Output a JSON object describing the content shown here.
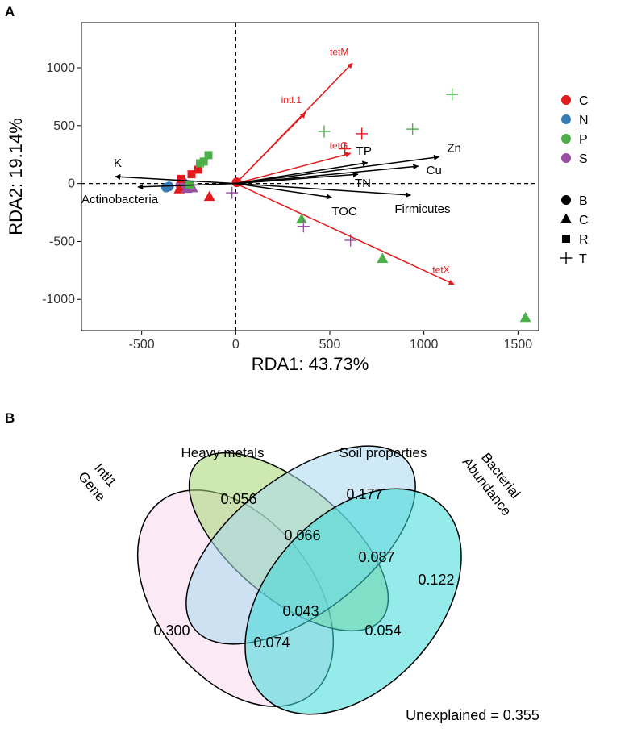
{
  "panel_a": {
    "label": "A"
  },
  "panel_b": {
    "label": "B"
  },
  "chart_data": [
    {
      "type": "scatter",
      "title": "",
      "xlabel": "RDA1: 43.73%",
      "ylabel": "RDA2: 19.14%",
      "xlim": [
        -820,
        1610
      ],
      "ylim": [
        -1270,
        1390
      ],
      "x_ticks": [
        -500,
        0,
        500,
        1000,
        1500
      ],
      "x_tick_labels": [
        "-500",
        "0",
        "500",
        "1000",
        "1500"
      ],
      "y_ticks": [
        -1000,
        -500,
        0,
        500,
        1000
      ],
      "y_tick_labels": [
        "-1000",
        "-500",
        "0",
        "500",
        "1000"
      ],
      "reference_lines": {
        "x": 0,
        "y": 0,
        "style": "dashed"
      },
      "color_legend": {
        "entries": [
          {
            "label": "C",
            "color": "#e41a1c"
          },
          {
            "label": "N",
            "color": "#377eb8"
          },
          {
            "label": "P",
            "color": "#4daf4a"
          },
          {
            "label": "S",
            "color": "#984ea3"
          }
        ]
      },
      "shape_legend": {
        "entries": [
          {
            "label": "B",
            "shape": "circle"
          },
          {
            "label": "C",
            "shape": "triangle"
          },
          {
            "label": "R",
            "shape": "square"
          },
          {
            "label": "T",
            "shape": "plus"
          }
        ]
      },
      "points": [
        {
          "x": -370,
          "y": -35,
          "group": "N",
          "shape": "circle"
        },
        {
          "x": -355,
          "y": -25,
          "group": "N",
          "shape": "circle"
        },
        {
          "x": -295,
          "y": -15,
          "group": "S",
          "shape": "circle"
        },
        {
          "x": -280,
          "y": 10,
          "group": "S",
          "shape": "circle"
        },
        {
          "x": -265,
          "y": -20,
          "group": "S",
          "shape": "circle"
        },
        {
          "x": -300,
          "y": -50,
          "group": "C",
          "shape": "triangle"
        },
        {
          "x": -260,
          "y": -45,
          "group": "S",
          "shape": "triangle"
        },
        {
          "x": -230,
          "y": -40,
          "group": "S",
          "shape": "triangle"
        },
        {
          "x": -140,
          "y": -115,
          "group": "C",
          "shape": "triangle"
        },
        {
          "x": 350,
          "y": -310,
          "group": "P",
          "shape": "triangle"
        },
        {
          "x": 780,
          "y": -650,
          "group": "P",
          "shape": "triangle"
        },
        {
          "x": 1540,
          "y": -1160,
          "group": "P",
          "shape": "triangle"
        },
        {
          "x": -290,
          "y": 40,
          "group": "C",
          "shape": "square"
        },
        {
          "x": -235,
          "y": 80,
          "group": "C",
          "shape": "square"
        },
        {
          "x": -200,
          "y": 120,
          "group": "C",
          "shape": "square"
        },
        {
          "x": -190,
          "y": 175,
          "group": "P",
          "shape": "square"
        },
        {
          "x": -170,
          "y": 190,
          "group": "P",
          "shape": "square"
        },
        {
          "x": -145,
          "y": 245,
          "group": "P",
          "shape": "square"
        },
        {
          "x": -245,
          "y": -10,
          "group": "P",
          "shape": "square"
        },
        {
          "x": 470,
          "y": 450,
          "group": "P",
          "shape": "plus"
        },
        {
          "x": 940,
          "y": 470,
          "group": "P",
          "shape": "plus"
        },
        {
          "x": 1150,
          "y": 770,
          "group": "P",
          "shape": "plus"
        },
        {
          "x": 670,
          "y": 430,
          "group": "C",
          "shape": "plus"
        },
        {
          "x": 580,
          "y": 300,
          "group": "C",
          "shape": "plus"
        },
        {
          "x": 360,
          "y": -370,
          "group": "S",
          "shape": "plus"
        },
        {
          "x": 610,
          "y": -490,
          "group": "S",
          "shape": "plus"
        },
        {
          "x": -20,
          "y": -80,
          "group": "S",
          "shape": "plus"
        },
        {
          "x": 5,
          "y": 10,
          "group": "C",
          "shape": "circle"
        }
      ],
      "vectors": [
        {
          "label": "tetM",
          "x": 620,
          "y": 1040,
          "color": "#e41a1c",
          "category": "ARG"
        },
        {
          "label": "intl.1",
          "x": 370,
          "y": 610,
          "color": "#e41a1c",
          "category": "ARG"
        },
        {
          "label": "tetG",
          "x": 610,
          "y": 260,
          "color": "#e41a1c",
          "category": "ARG"
        },
        {
          "label": "tetX",
          "x": 1160,
          "y": -870,
          "color": "#e41a1c",
          "category": "ARG"
        },
        {
          "label": "K",
          "x": -640,
          "y": 60,
          "color": "#000000",
          "category": "variable"
        },
        {
          "label": "Actinobacteria",
          "x": -520,
          "y": -30,
          "color": "#000000",
          "category": "variable"
        },
        {
          "label": "TP",
          "x": 700,
          "y": 180,
          "color": "#000000",
          "category": "variable"
        },
        {
          "label": "Zn",
          "x": 1080,
          "y": 230,
          "color": "#000000",
          "category": "variable"
        },
        {
          "label": "Cu",
          "x": 970,
          "y": 150,
          "color": "#000000",
          "category": "variable"
        },
        {
          "label": "TN",
          "x": 650,
          "y": 80,
          "color": "#000000",
          "category": "variable"
        },
        {
          "label": "TOC",
          "x": 510,
          "y": -120,
          "color": "#000000",
          "category": "variable"
        },
        {
          "label": "Firmicutes",
          "x": 930,
          "y": -100,
          "color": "#000000",
          "category": "variable"
        }
      ]
    },
    {
      "type": "venn",
      "title": "",
      "sets": [
        {
          "name": "Intl1 Gene",
          "lines": [
            "Intl1",
            "Gene"
          ],
          "color": "#f7d9ee"
        },
        {
          "name": "Heavy metals",
          "lines": [
            "Heavy metals"
          ],
          "color": "#a6d672"
        },
        {
          "name": "Soil properties",
          "lines": [
            "Soil properties"
          ],
          "color": "#a7d8ef"
        },
        {
          "name": "Bacterial Abundance",
          "lines": [
            "Bacterial",
            "Abundance"
          ],
          "color": "#3ed9d9"
        }
      ],
      "regions": [
        {
          "sets": [
            "Intl1 Gene"
          ],
          "value": "0.300"
        },
        {
          "sets": [
            "Heavy metals"
          ],
          "value": "0.056"
        },
        {
          "sets": [
            "Soil properties"
          ],
          "value": "0.177"
        },
        {
          "sets": [
            "Bacterial Abundance"
          ],
          "value": "0.122"
        },
        {
          "sets": [
            "Heavy metals",
            "Soil properties"
          ],
          "value": "0.066"
        },
        {
          "sets": [
            "Soil properties",
            "Bacterial Abundance"
          ],
          "value": "0.087"
        },
        {
          "sets": [
            "Intl1 Gene",
            "Heavy metals",
            "Soil properties",
            "Bacterial Abundance"
          ],
          "value": "0.043"
        },
        {
          "sets": [
            "Intl1 Gene",
            "Bacterial Abundance"
          ],
          "value": "0.074"
        },
        {
          "sets": [
            "Heavy metals",
            "Bacterial Abundance"
          ],
          "value": "0.054"
        }
      ],
      "unexplained": "Unexplained = 0.355"
    }
  ]
}
